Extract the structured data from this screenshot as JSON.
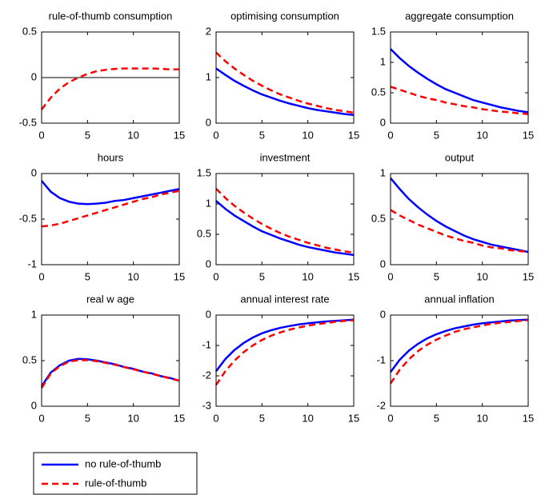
{
  "chart_data": [
    {
      "type": "line",
      "title": "rule-of-thumb consumption",
      "x": [
        0,
        1,
        2,
        3,
        4,
        5,
        6,
        7,
        8,
        9,
        10,
        11,
        12,
        13,
        14,
        15
      ],
      "xlim": [
        0,
        15
      ],
      "xticks": [
        0,
        5,
        10,
        15
      ],
      "ylim": [
        -0.5,
        0.5
      ],
      "yticks": [
        -0.5,
        0,
        0.5
      ],
      "zero_line": true,
      "series": [
        {
          "name": "rule-of-thumb",
          "color": "#ff0000",
          "style": "dashed",
          "values": [
            -0.35,
            -0.22,
            -0.12,
            -0.05,
            0.0,
            0.04,
            0.07,
            0.085,
            0.095,
            0.1,
            0.1,
            0.1,
            0.1,
            0.095,
            0.09,
            0.09
          ]
        }
      ]
    },
    {
      "type": "line",
      "title": "optimising consumption",
      "x": [
        0,
        1,
        2,
        3,
        4,
        5,
        6,
        7,
        8,
        9,
        10,
        11,
        12,
        13,
        14,
        15
      ],
      "xlim": [
        0,
        15
      ],
      "xticks": [
        0,
        5,
        10,
        15
      ],
      "ylim": [
        0,
        2
      ],
      "yticks": [
        0,
        1,
        2
      ],
      "series": [
        {
          "name": "no rule-of-thumb",
          "color": "#0000ff",
          "style": "solid",
          "values": [
            1.2,
            1.06,
            0.93,
            0.82,
            0.72,
            0.63,
            0.56,
            0.49,
            0.43,
            0.38,
            0.33,
            0.29,
            0.26,
            0.23,
            0.2,
            0.18
          ]
        },
        {
          "name": "rule-of-thumb",
          "color": "#ff0000",
          "style": "dashed",
          "values": [
            1.55,
            1.36,
            1.2,
            1.06,
            0.93,
            0.82,
            0.72,
            0.63,
            0.56,
            0.49,
            0.43,
            0.38,
            0.33,
            0.29,
            0.26,
            0.23
          ]
        }
      ]
    },
    {
      "type": "line",
      "title": "aggregate consumption",
      "x": [
        0,
        1,
        2,
        3,
        4,
        5,
        6,
        7,
        8,
        9,
        10,
        11,
        12,
        13,
        14,
        15
      ],
      "xlim": [
        0,
        15
      ],
      "xticks": [
        0,
        5,
        10,
        15
      ],
      "ylim": [
        0,
        1.5
      ],
      "yticks": [
        0,
        0.5,
        1,
        1.5
      ],
      "series": [
        {
          "name": "no rule-of-thumb",
          "color": "#0000ff",
          "style": "solid",
          "values": [
            1.22,
            1.07,
            0.94,
            0.83,
            0.73,
            0.64,
            0.56,
            0.5,
            0.44,
            0.38,
            0.34,
            0.3,
            0.26,
            0.23,
            0.2,
            0.18
          ]
        },
        {
          "name": "rule-of-thumb",
          "color": "#ff0000",
          "style": "dashed",
          "values": [
            0.6,
            0.55,
            0.5,
            0.45,
            0.41,
            0.38,
            0.34,
            0.31,
            0.28,
            0.26,
            0.23,
            0.21,
            0.19,
            0.18,
            0.16,
            0.15
          ]
        }
      ]
    },
    {
      "type": "line",
      "title": "hours",
      "x": [
        0,
        1,
        2,
        3,
        4,
        5,
        6,
        7,
        8,
        9,
        10,
        11,
        12,
        13,
        14,
        15
      ],
      "xlim": [
        0,
        15
      ],
      "xticks": [
        0,
        5,
        10,
        15
      ],
      "ylim": [
        -1,
        0
      ],
      "yticks": [
        -1,
        -0.5,
        0
      ],
      "series": [
        {
          "name": "no rule-of-thumb",
          "color": "#0000ff",
          "style": "solid",
          "values": [
            -0.08,
            -0.2,
            -0.27,
            -0.31,
            -0.33,
            -0.335,
            -0.33,
            -0.32,
            -0.3,
            -0.29,
            -0.27,
            -0.25,
            -0.23,
            -0.21,
            -0.19,
            -0.17
          ]
        },
        {
          "name": "rule-of-thumb",
          "color": "#ff0000",
          "style": "dashed",
          "values": [
            -0.58,
            -0.57,
            -0.55,
            -0.52,
            -0.49,
            -0.46,
            -0.43,
            -0.4,
            -0.37,
            -0.34,
            -0.31,
            -0.28,
            -0.26,
            -0.23,
            -0.21,
            -0.19
          ]
        }
      ]
    },
    {
      "type": "line",
      "title": "investment",
      "x": [
        0,
        1,
        2,
        3,
        4,
        5,
        6,
        7,
        8,
        9,
        10,
        11,
        12,
        13,
        14,
        15
      ],
      "xlim": [
        0,
        15
      ],
      "xticks": [
        0,
        5,
        10,
        15
      ],
      "ylim": [
        0,
        1.5
      ],
      "yticks": [
        0,
        0.5,
        1,
        1.5
      ],
      "series": [
        {
          "name": "no rule-of-thumb",
          "color": "#0000ff",
          "style": "solid",
          "values": [
            1.05,
            0.92,
            0.81,
            0.72,
            0.63,
            0.55,
            0.49,
            0.43,
            0.38,
            0.33,
            0.29,
            0.26,
            0.23,
            0.2,
            0.18,
            0.16
          ]
        },
        {
          "name": "rule-of-thumb",
          "color": "#ff0000",
          "style": "dashed",
          "values": [
            1.25,
            1.1,
            0.97,
            0.86,
            0.76,
            0.67,
            0.59,
            0.52,
            0.46,
            0.41,
            0.36,
            0.32,
            0.28,
            0.25,
            0.22,
            0.2
          ]
        }
      ]
    },
    {
      "type": "line",
      "title": "output",
      "x": [
        0,
        1,
        2,
        3,
        4,
        5,
        6,
        7,
        8,
        9,
        10,
        11,
        12,
        13,
        14,
        15
      ],
      "xlim": [
        0,
        15
      ],
      "xticks": [
        0,
        5,
        10,
        15
      ],
      "ylim": [
        0,
        1
      ],
      "yticks": [
        0,
        0.5,
        1
      ],
      "series": [
        {
          "name": "no rule-of-thumb",
          "color": "#0000ff",
          "style": "solid",
          "values": [
            0.95,
            0.83,
            0.72,
            0.63,
            0.55,
            0.48,
            0.42,
            0.37,
            0.32,
            0.28,
            0.25,
            0.22,
            0.2,
            0.18,
            0.16,
            0.14
          ]
        },
        {
          "name": "rule-of-thumb",
          "color": "#ff0000",
          "style": "dashed",
          "values": [
            0.6,
            0.54,
            0.49,
            0.44,
            0.4,
            0.36,
            0.32,
            0.29,
            0.26,
            0.24,
            0.21,
            0.19,
            0.18,
            0.16,
            0.15,
            0.14
          ]
        }
      ]
    },
    {
      "type": "line",
      "title": "real w age",
      "x": [
        0,
        1,
        2,
        3,
        4,
        5,
        6,
        7,
        8,
        9,
        10,
        11,
        12,
        13,
        14,
        15
      ],
      "xlim": [
        0,
        15
      ],
      "xticks": [
        0,
        5,
        10,
        15
      ],
      "ylim": [
        0,
        1
      ],
      "yticks": [
        0,
        0.5,
        1
      ],
      "series": [
        {
          "name": "no rule-of-thumb",
          "color": "#0000ff",
          "style": "solid",
          "values": [
            0.22,
            0.37,
            0.45,
            0.5,
            0.52,
            0.515,
            0.5,
            0.48,
            0.46,
            0.43,
            0.41,
            0.38,
            0.36,
            0.33,
            0.31,
            0.28
          ]
        },
        {
          "name": "rule-of-thumb",
          "color": "#ff0000",
          "style": "dashed",
          "values": [
            0.2,
            0.36,
            0.44,
            0.49,
            0.505,
            0.505,
            0.495,
            0.475,
            0.455,
            0.43,
            0.405,
            0.38,
            0.355,
            0.33,
            0.305,
            0.28
          ]
        }
      ]
    },
    {
      "type": "line",
      "title": "annual interest rate",
      "x": [
        0,
        1,
        2,
        3,
        4,
        5,
        6,
        7,
        8,
        9,
        10,
        11,
        12,
        13,
        14,
        15
      ],
      "xlim": [
        0,
        15
      ],
      "xticks": [
        0,
        5,
        10,
        15
      ],
      "ylim": [
        -3,
        0
      ],
      "yticks": [
        -3,
        -2,
        -1,
        0
      ],
      "series": [
        {
          "name": "no rule-of-thumb",
          "color": "#0000ff",
          "style": "solid",
          "values": [
            -1.85,
            -1.45,
            -1.15,
            -0.92,
            -0.74,
            -0.6,
            -0.5,
            -0.42,
            -0.36,
            -0.31,
            -0.27,
            -0.24,
            -0.21,
            -0.19,
            -0.17,
            -0.15
          ]
        },
        {
          "name": "rule-of-thumb",
          "color": "#ff0000",
          "style": "dashed",
          "values": [
            -2.3,
            -1.85,
            -1.5,
            -1.22,
            -1.0,
            -0.82,
            -0.68,
            -0.57,
            -0.48,
            -0.41,
            -0.35,
            -0.3,
            -0.26,
            -0.22,
            -0.19,
            -0.17
          ]
        }
      ]
    },
    {
      "type": "line",
      "title": "annual inflation",
      "x": [
        0,
        1,
        2,
        3,
        4,
        5,
        6,
        7,
        8,
        9,
        10,
        11,
        12,
        13,
        14,
        15
      ],
      "xlim": [
        0,
        15
      ],
      "xticks": [
        0,
        5,
        10,
        15
      ],
      "ylim": [
        -2,
        0
      ],
      "yticks": [
        -2,
        -1,
        0
      ],
      "series": [
        {
          "name": "no rule-of-thumb",
          "color": "#0000ff",
          "style": "solid",
          "values": [
            -1.25,
            -0.98,
            -0.78,
            -0.63,
            -0.51,
            -0.42,
            -0.35,
            -0.29,
            -0.25,
            -0.21,
            -0.18,
            -0.16,
            -0.14,
            -0.12,
            -0.11,
            -0.1
          ]
        },
        {
          "name": "rule-of-thumb",
          "color": "#ff0000",
          "style": "dashed",
          "values": [
            -1.5,
            -1.2,
            -0.97,
            -0.79,
            -0.65,
            -0.54,
            -0.45,
            -0.37,
            -0.31,
            -0.27,
            -0.23,
            -0.19,
            -0.17,
            -0.15,
            -0.13,
            -0.11
          ]
        }
      ]
    }
  ]
}
